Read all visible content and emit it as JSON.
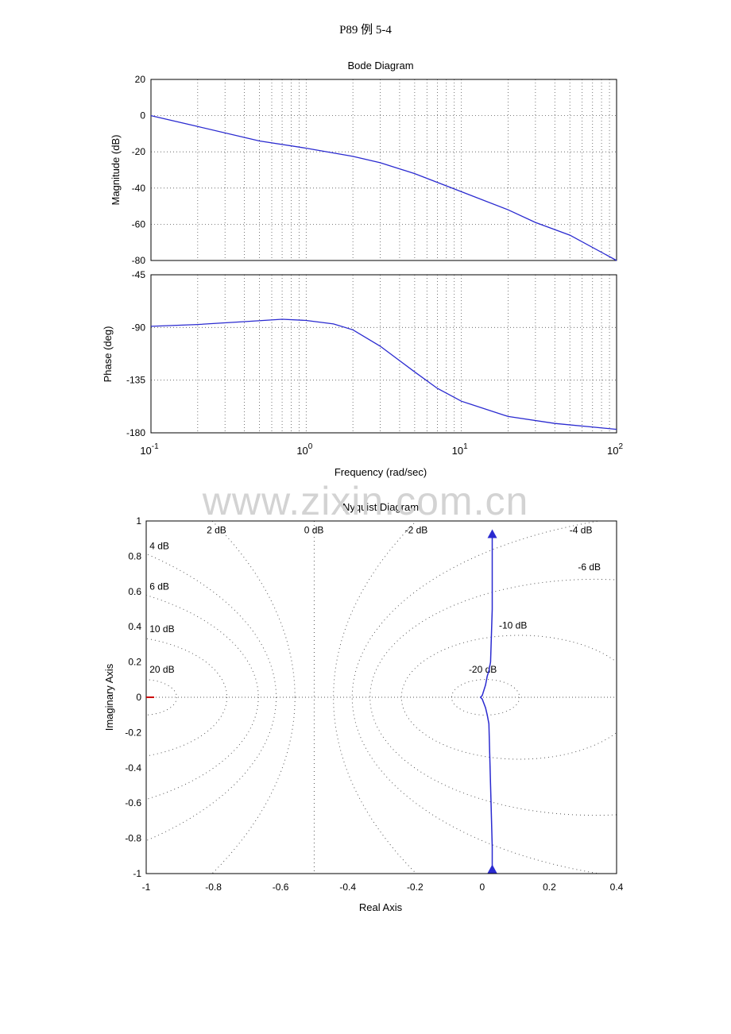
{
  "page": {
    "header": "P89 例 5-4",
    "watermark": "www.zixin.com.cn"
  },
  "colors": {
    "curve": "#2a2ad0",
    "grid": "#555555",
    "axis": "#000000",
    "nyquist_marker": "#cc0000"
  },
  "chart_data": [
    {
      "type": "line",
      "title": "Bode Diagram",
      "subplot": "magnitude",
      "xscale": "log",
      "xlabel": "",
      "ylabel": "Magnitude (dB)",
      "xlim": [
        0.1,
        100
      ],
      "ylim": [
        -80,
        20
      ],
      "yticks": [
        20,
        0,
        -20,
        -40,
        -60,
        -80
      ],
      "grid": true,
      "x": [
        0.1,
        0.2,
        0.5,
        1,
        2,
        3,
        5,
        10,
        20,
        30,
        50,
        100
      ],
      "series": [
        {
          "values": [
            0,
            -6,
            -14,
            -18,
            -22.5,
            -26,
            -32,
            -42,
            -52,
            -59,
            -66,
            -80
          ]
        }
      ]
    },
    {
      "type": "line",
      "subplot": "phase",
      "xscale": "log",
      "xlabel": "Frequency  (rad/sec)",
      "ylabel": "Phase (deg)",
      "xlim": [
        0.1,
        100
      ],
      "ylim": [
        -180,
        -45
      ],
      "yticks": [
        -45,
        -90,
        -135,
        -180
      ],
      "xticks": [
        {
          "base": "10",
          "exp": "-1"
        },
        {
          "base": "10",
          "exp": "0"
        },
        {
          "base": "10",
          "exp": "1"
        },
        {
          "base": "10",
          "exp": "2"
        }
      ],
      "grid": true,
      "x": [
        0.1,
        0.2,
        0.4,
        0.7,
        1,
        1.5,
        2,
        3,
        5,
        7,
        10,
        20,
        40,
        100
      ],
      "series": [
        {
          "values": [
            -89,
            -87.5,
            -85,
            -83,
            -84,
            -87,
            -92,
            -106,
            -128,
            -142,
            -153,
            -166,
            -172,
            -177
          ]
        }
      ]
    },
    {
      "type": "line",
      "title": "Nyquist Diagram",
      "xlabel": "Real Axis",
      "ylabel": "Imaginary Axis",
      "xlim": [
        -1,
        0.4
      ],
      "ylim": [
        -1,
        1
      ],
      "xticks": [
        "-1",
        "-0.8",
        "-0.6",
        "-0.4",
        "-0.2",
        "0",
        "0.2",
        "0.4"
      ],
      "yticks": [
        "1",
        "0.8",
        "0.6",
        "0.4",
        "0.2",
        "0",
        "-0.2",
        "-0.4",
        "-0.6",
        "-0.8",
        "-1"
      ],
      "grid_labels": [
        "2 dB",
        "0 dB",
        "-2 dB",
        "-4 dB",
        "4 dB",
        "-6 dB",
        "6 dB",
        "-10 dB",
        "10 dB",
        "-20 dB",
        "20 dB"
      ],
      "x": [
        0.03,
        0.03,
        0.025,
        0.02,
        0.015,
        0.01,
        0.0,
        -0.005,
        0.0,
        0.01,
        0.015,
        0.02,
        0.025,
        0.03,
        0.03
      ],
      "series": [
        {
          "values": [
            0.93,
            0.5,
            0.2,
            0.15,
            0.12,
            0.07,
            0.01,
            0.0,
            -0.01,
            -0.06,
            -0.1,
            -0.15,
            -0.5,
            -0.85,
            -0.98
          ]
        }
      ],
      "critical_point": {
        "x": -1,
        "y": 0
      }
    }
  ]
}
